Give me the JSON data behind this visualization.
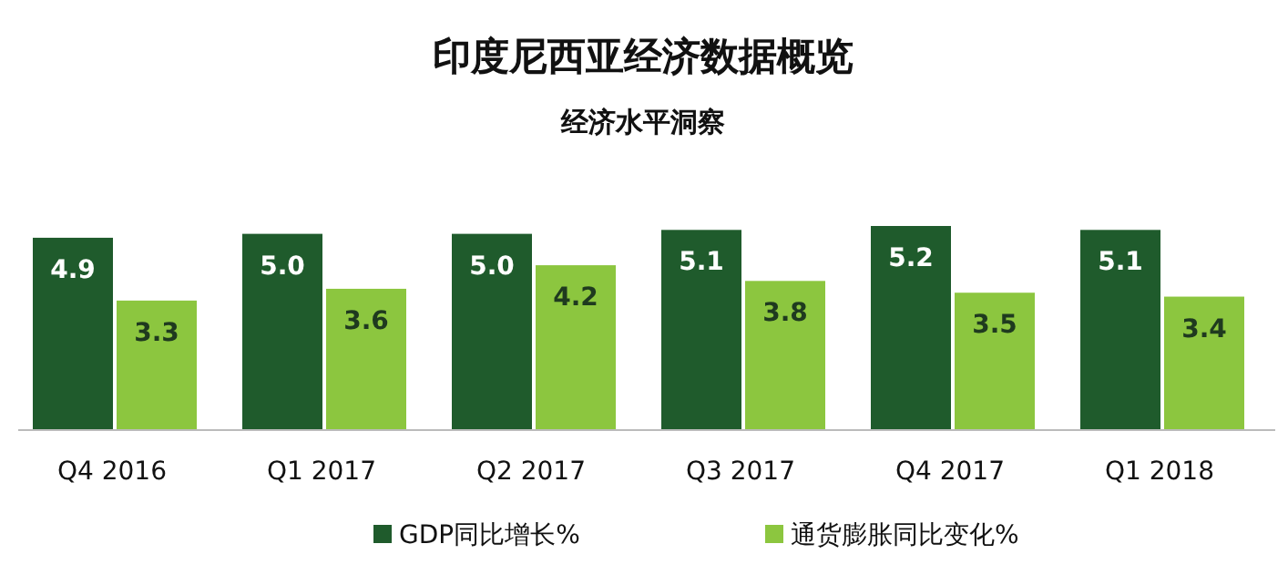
{
  "chart_data": {
    "type": "bar",
    "title": "印度尼西亚经济数据概览",
    "subtitle": "经济水平洞察",
    "categories": [
      "Q4 2016",
      "Q1 2017",
      "Q2 2017",
      "Q3 2017",
      "Q4 2017",
      "Q1 2018"
    ],
    "series": [
      {
        "name": "GDP同比增长%",
        "color": "#1f5b2c",
        "values": [
          4.9,
          5.0,
          5.0,
          5.1,
          5.2,
          5.1
        ],
        "value_labels": [
          "4.9",
          "5.0",
          "5.0",
          "5.1",
          "5.2",
          "5.1"
        ]
      },
      {
        "name": "通货膨胀同比变化%",
        "color": "#8cc63f",
        "values": [
          3.3,
          3.6,
          4.2,
          3.8,
          3.5,
          3.4
        ],
        "value_labels": [
          "3.3",
          "3.6",
          "4.2",
          "3.8",
          "3.5",
          "3.4"
        ]
      }
    ],
    "legend": "bottom"
  }
}
